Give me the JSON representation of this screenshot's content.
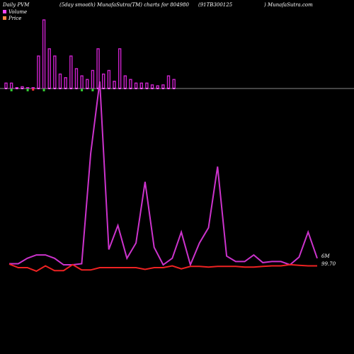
{
  "header": {
    "title_left": "Daily PVM",
    "title_mid": "(5day smooth) MunafaSutra(TM) charts for 804980",
    "title_code": "(91TB300125",
    "title_right": ") MunafaSutra.com"
  },
  "legend": {
    "volume_label": "Volume",
    "price_label": "Price",
    "volume_color": "#ff44ff",
    "price_color": "#ff8844"
  },
  "chart_data": {
    "type": "line",
    "title": "",
    "colors": {
      "volume_bar": "#cc22cc",
      "up_bar": "#ff66ff",
      "down_tick": "#33cc33",
      "neg_tick": "#ff3333",
      "volume_line": "#cc33cc",
      "price_line": "#ee2222",
      "axis": "#888888"
    },
    "volume_bars": [
      3,
      3,
      0.5,
      1,
      0.5,
      0.5,
      18,
      38,
      22,
      18,
      8,
      6,
      18,
      11,
      7,
      5,
      10,
      22,
      8,
      10,
      4,
      22,
      7,
      5,
      3,
      3,
      3,
      2,
      1.5,
      2,
      7,
      5
    ],
    "bar_ticks": [
      "up",
      "down",
      "up",
      "up",
      "down",
      "neg",
      "up",
      "down",
      "up",
      "up",
      "up",
      "up",
      "up",
      "up",
      "down",
      "up",
      "down",
      "up",
      "up",
      "up",
      "up",
      "up",
      "up",
      "up",
      "up",
      "up",
      "up",
      "up",
      "up",
      "up",
      "up",
      "up"
    ],
    "volume_line": [
      0.5,
      0.5,
      3,
      4.5,
      4.5,
      3,
      0,
      0,
      0.5,
      51,
      84,
      7,
      18,
      3,
      10,
      38,
      8,
      0,
      3,
      15,
      0,
      10,
      17,
      45,
      4,
      1.5,
      1.5,
      4.5,
      1,
      1.5,
      1.5,
      0,
      3.5,
      15,
      3
    ],
    "price_line": [
      100.0,
      99.4,
      99.4,
      98.8,
      99.7,
      98.9,
      98.9,
      99.9,
      99.0,
      99.0,
      99.4,
      99.4,
      99.4,
      99.4,
      99.4,
      99.1,
      99.4,
      99.4,
      99.7,
      99.2,
      99.6,
      99.6,
      99.5,
      99.6,
      99.6,
      99.6,
      99.5,
      99.5,
      99.6,
      99.7,
      99.7,
      99.9,
      99.8,
      99.7,
      99.7
    ],
    "ylabels": {
      "volume_last": "6M",
      "price_last": "99.70"
    }
  }
}
